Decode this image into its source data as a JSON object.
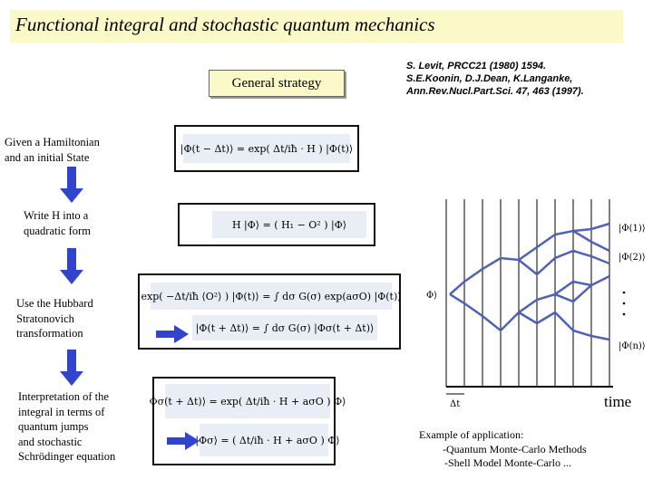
{
  "title": "Functional integral and stochastic quantum mechanics",
  "strategy_label": "General strategy",
  "references": [
    "S. Levit, PRCC21 (1980) 1594.",
    "S.E.Koonin, D.J.Dean, K.Langanke,",
    "Ann.Rev.Nucl.Part.Sci. 47, 463 (1997)."
  ],
  "steps": [
    {
      "lines": [
        "Given a Hamiltonian",
        "and an initial  State"
      ]
    },
    {
      "lines": [
        "Write H into a",
        "quadratic form"
      ]
    },
    {
      "lines": [
        "Use the Hubbard",
        "Stratonovich",
        "transformation"
      ]
    },
    {
      "lines": [
        "Interpretation of the",
        "integral in terms of",
        "quantum jumps",
        "and stochastic",
        "Schrödinger equation"
      ]
    }
  ],
  "equations": {
    "eq1": "|Φ(t − Δt)⟩ = exp( Δt/iħ · H ) |Φ(t)⟩",
    "eq2": "H |Φ⟩ = ( H₁ − O² ) |Φ⟩",
    "eq3": "exp( −Δt/iħ ⟨O²⟩ ) |Φ(t)⟩ = ∫ dσ G(σ) exp(aσO) |Φ(t)⟩",
    "eq4": "|Φ(t + Δt)⟩ = ∫ dσ G(σ) |Φσ(t + Δt)⟩",
    "eq5": "Φσ(t + Δt)⟩ = exp( Δt/iħ · H + aσO ) Φ⟩",
    "eq6": "Δ|Φσ⟩ = ( Δt/iħ · H + aσO ) Φ⟩"
  },
  "diagram": {
    "initial_state": "Φ⟩",
    "trajectory_labels": [
      "|Φ(1)⟩",
      "|Φ(2)⟩",
      "|Φ(n)⟩"
    ],
    "step_label": "Δt",
    "axis_label": "time"
  },
  "example": {
    "heading": "Example of application:",
    "items": [
      "-Quantum Monte-Carlo Methods",
      "-Shell Model Monte-Carlo ..."
    ]
  },
  "colors": {
    "title_bg": "#fbf9c8",
    "arrow": "#3344cc",
    "trajectory": "#4f62b8",
    "equation_bg": "#e9eef6"
  }
}
